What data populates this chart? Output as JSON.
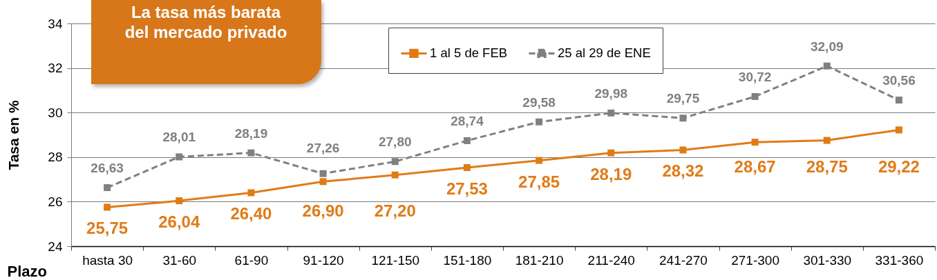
{
  "chart_data": {
    "type": "line",
    "title": "La tasa más barata del mercado privado",
    "xlabel": "Plazo",
    "ylabel": "Tasa en %",
    "categories": [
      "hasta 30",
      "31-60",
      "61-90",
      "91-120",
      "121-150",
      "151-180",
      "181-210",
      "211-240",
      "241-270",
      "271-300",
      "301-330",
      "331-360"
    ],
    "series": [
      {
        "name": "1 al 5 de FEB",
        "color": "#e07b17",
        "line_style": "solid",
        "values": [
          25.75,
          26.04,
          26.4,
          26.9,
          27.2,
          27.53,
          27.85,
          28.19,
          28.32,
          28.67,
          28.75,
          29.22
        ],
        "value_labels": [
          "25,75",
          "26,04",
          "26,40",
          "26,90",
          "27,20",
          "27,53",
          "27,85",
          "28,19",
          "28,32",
          "28,67",
          "28,75",
          "29,22"
        ]
      },
      {
        "name": "25 al 29 de ENE",
        "color": "#808080",
        "line_style": "dashed",
        "values": [
          26.63,
          28.01,
          28.19,
          27.26,
          27.8,
          28.74,
          29.58,
          29.98,
          29.75,
          30.72,
          32.09,
          30.56
        ],
        "value_labels": [
          "26,63",
          "28,01",
          "28,19",
          "27,26",
          "27,80",
          "28,74",
          "29,58",
          "29,98",
          "29,75",
          "30,72",
          "32,09",
          "30,56"
        ]
      }
    ],
    "ylim": [
      24,
      34
    ],
    "yticks": [
      24,
      26,
      28,
      30,
      32,
      34
    ],
    "grid": "y",
    "legend": "top",
    "marker": "square"
  }
}
